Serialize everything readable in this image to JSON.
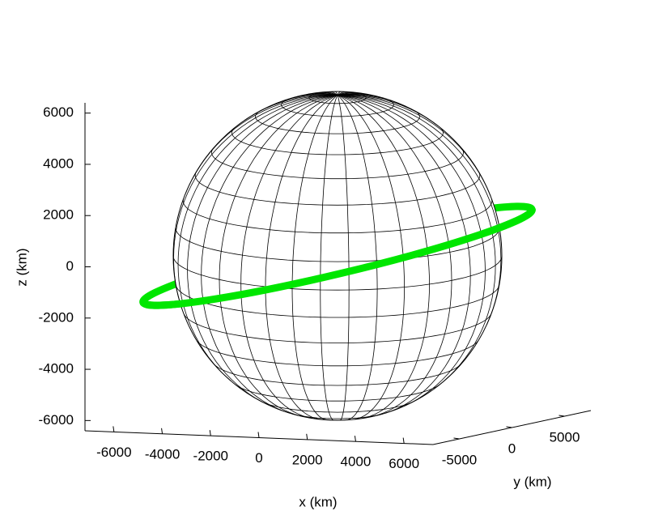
{
  "chart_data": {
    "type": "scatter3d",
    "xlabel": "x (km)",
    "ylabel": "y (km)",
    "zlabel": "z (km)",
    "xlim": [
      -7200,
      7200
    ],
    "xticks": [
      -6000,
      -4000,
      -2000,
      0,
      2000,
      4000,
      6000
    ],
    "ylim": [
      -7500,
      7500
    ],
    "yticks": [
      -5000,
      0,
      5000
    ],
    "zlim": [
      -6400,
      6400
    ],
    "zticks": [
      -6000,
      -4000,
      -2000,
      0,
      2000,
      4000,
      6000
    ],
    "orbit_color": "#00e600",
    "globe_color": "#000000"
  }
}
